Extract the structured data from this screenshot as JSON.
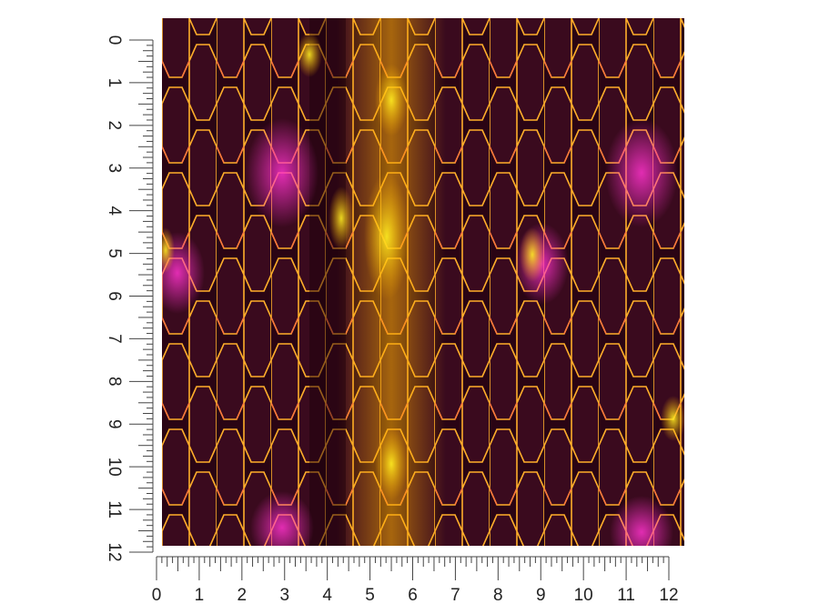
{
  "rulers": {
    "left": {
      "labels": [
        0,
        1,
        2,
        3,
        4,
        5,
        6,
        7,
        8,
        9,
        10,
        11,
        12
      ]
    },
    "bottom": {
      "labels": [
        0,
        1,
        2,
        3,
        4,
        5,
        6,
        7,
        8,
        9,
        10,
        11,
        12
      ]
    }
  }
}
